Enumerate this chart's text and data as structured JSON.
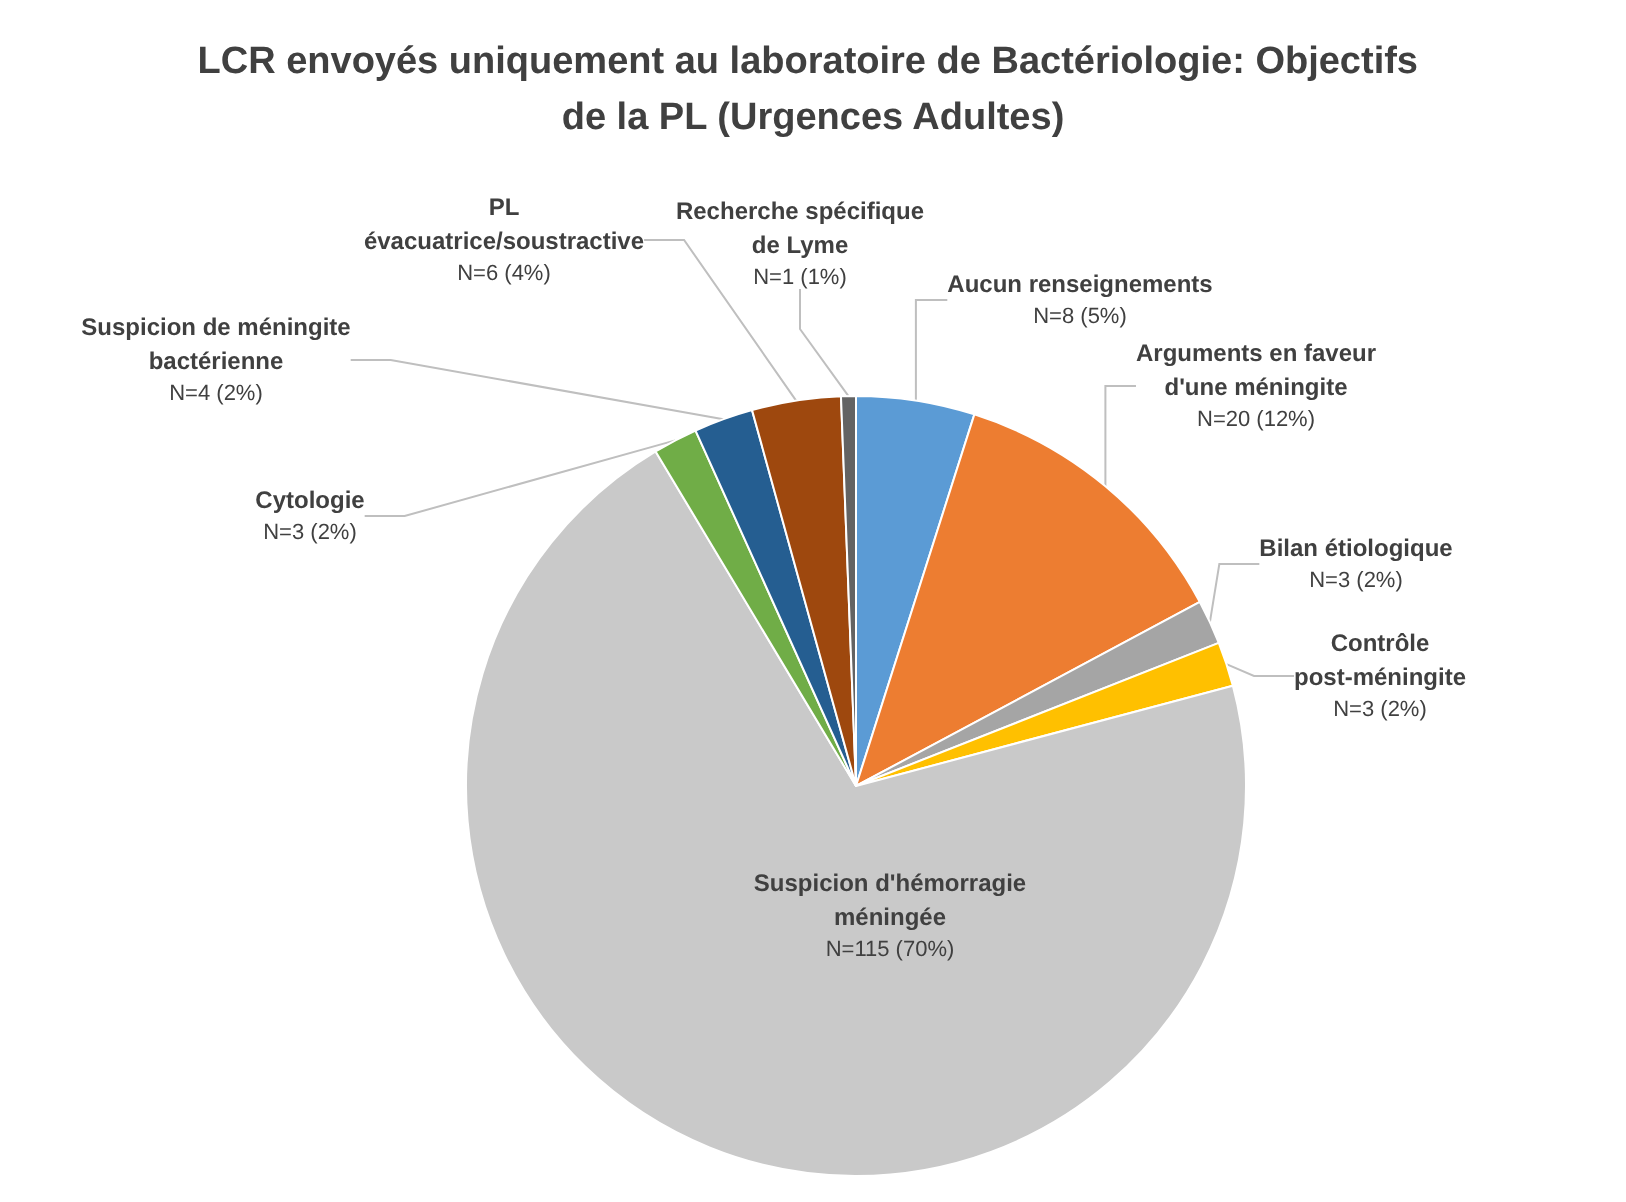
{
  "chart_data": {
    "type": "pie",
    "title": "LCR envoyés uniquement au laboratoire de Bactériologie: Objectifs de la PL (Urgences Adultes)",
    "categories": [
      "Aucun renseignements",
      "Arguments en faveur d'une méningite",
      "Bilan étiologique",
      "Contrôle post-méningite",
      "Suspicion d'hémorragie méningée",
      "Cytologie",
      "Suspicion de méningite bactérienne",
      "PL évacuatrice/soustractive",
      "Recherche spécifique de Lyme"
    ],
    "values": [
      8,
      20,
      3,
      3,
      115,
      3,
      4,
      6,
      1
    ],
    "value_labels": [
      "N=8 (5%)",
      "N=20 (12%)",
      "N=3 (2%)",
      "N=3 (2%)",
      "N=115 (70%)",
      "N=3 (2%)",
      "N=4 (2%)",
      "N=6 (4%)",
      "N=1 (1%)"
    ],
    "colors": [
      "#5b9bd5",
      "#ed7d31",
      "#a5a5a5",
      "#ffc000",
      "#c9c9c9",
      "#70ad47",
      "#255e91",
      "#9e480e",
      "#636363"
    ],
    "legend": false
  }
}
